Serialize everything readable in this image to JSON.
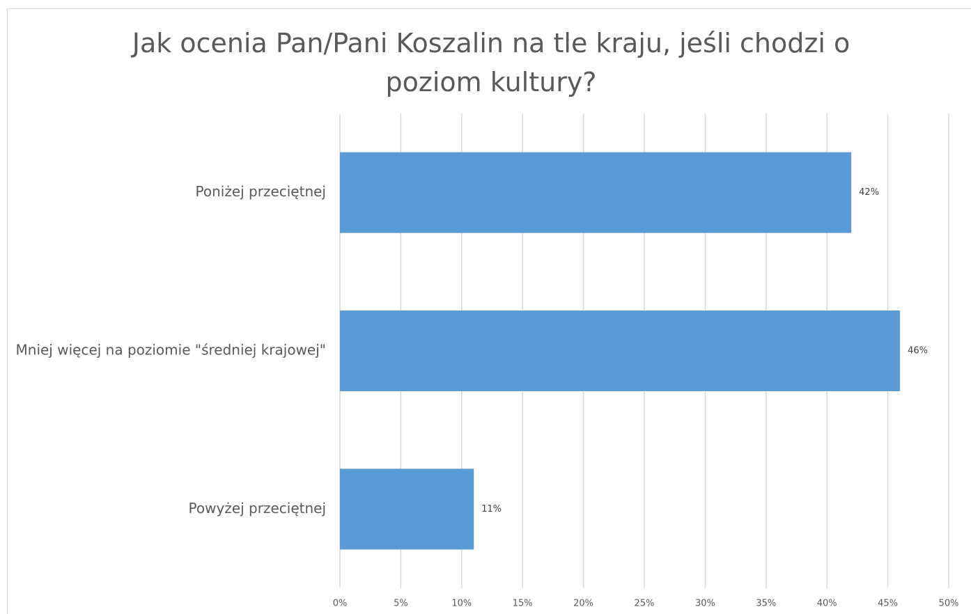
{
  "chart_data": {
    "type": "bar",
    "orientation": "horizontal",
    "title": "Jak ocenia Pan/Pani Koszalin na tle kraju, jeśli chodzi o poziom kultury?",
    "categories": [
      "Poniżej przeciętnej",
      "Mniej więcej na poziomie \"średniej krajowej\"",
      "Powyżej przeciętnej"
    ],
    "values": [
      42,
      46,
      11
    ],
    "value_labels": [
      "42%",
      "46%",
      "11%"
    ],
    "color": "#5b9bd5",
    "xlim": [
      0,
      50
    ],
    "xticks": [
      {
        "value": 0,
        "label": "0%"
      },
      {
        "value": 5,
        "label": "5%"
      },
      {
        "value": 10,
        "label": "10%"
      },
      {
        "value": 15,
        "label": "15%"
      },
      {
        "value": 20,
        "label": "20%"
      },
      {
        "value": 25,
        "label": "25%"
      },
      {
        "value": 30,
        "label": "30%"
      },
      {
        "value": 35,
        "label": "35%"
      },
      {
        "value": 40,
        "label": "40%"
      },
      {
        "value": 45,
        "label": "45%"
      },
      {
        "value": 50,
        "label": "50%"
      }
    ],
    "grid": true
  }
}
